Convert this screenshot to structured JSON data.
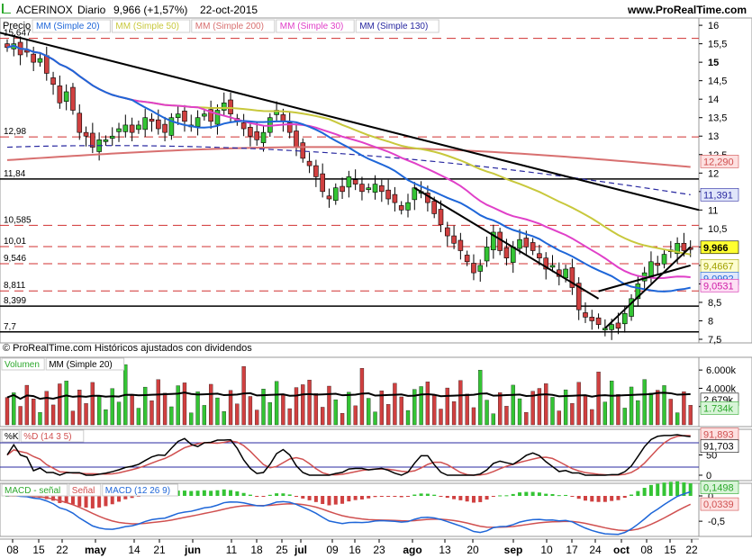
{
  "header": {
    "ticker": "ACERINOX",
    "period": "Diario",
    "quote": "9,966 (+1,57%)",
    "date": "22-oct-2015",
    "site": "www.ProRealTime.com"
  },
  "price_panel": {
    "label": "Precio",
    "legend": [
      {
        "text": "MM (Simple 20)",
        "color": "#1e66d8"
      },
      {
        "text": "MM (Simple 50)",
        "color": "#c8c83c"
      },
      {
        "text": "MM (Simple 200)",
        "color": "#d87070"
      },
      {
        "text": "MM (Simple 30)",
        "color": "#e040c8"
      },
      {
        "text": "MM (Simple 130)",
        "color": "#2828a0"
      }
    ],
    "footer": "© ProRealTime.com Históricos ajustados con dividendos",
    "level_labels": [
      "15,647",
      "12,98",
      "11,84",
      "10,585",
      "10,01",
      "9,546",
      "8,811",
      "8,399",
      "7,7"
    ],
    "y_ticks": [
      "16",
      "15,5",
      "15",
      "14,5",
      "14",
      "13,5",
      "13",
      "12,5",
      "12",
      "11,5",
      "11",
      "10,5",
      "10",
      "9,5",
      "9",
      "8,5",
      "8",
      "7,5"
    ],
    "value_badges": [
      {
        "text": "12,290",
        "bg": "#fde0e0",
        "fg": "#d05050"
      },
      {
        "text": "11,391",
        "bg": "#e0e6fa",
        "fg": "#2828a0"
      },
      {
        "text": "9,966",
        "bg": "#ffff30",
        "fg": "#000000"
      },
      {
        "text": "9,4667",
        "bg": "#fdfdd0",
        "fg": "#a0a000"
      },
      {
        "text": "9,0992",
        "bg": "#e0e8fa",
        "fg": "#1e66d8"
      },
      {
        "text": "9,0531",
        "bg": "#fde0f4",
        "fg": "#d020a8"
      }
    ]
  },
  "volume_panel": {
    "legend": [
      {
        "text": "Volumen",
        "color": "#2ca82c"
      },
      {
        "text": "MM (Simple 20)",
        "color": "#000000"
      }
    ],
    "y_ticks": [
      "6.000k",
      "4.000k",
      "2.000k"
    ],
    "value_badges": [
      {
        "text": "2.679k",
        "bg": "#ffffff",
        "fg": "#000000"
      },
      {
        "text": "1.734k",
        "bg": "#d8f4d8",
        "fg": "#2ca82c"
      }
    ]
  },
  "stoch_panel": {
    "legend": [
      {
        "text": "%K",
        "color": "#000000"
      },
      {
        "text": "%D (14 3 5)",
        "color": "#d05050"
      }
    ],
    "y_ticks": [
      "50",
      "0"
    ],
    "value_badges": [
      {
        "text": "91,893",
        "bg": "#fde0e0",
        "fg": "#d05050"
      },
      {
        "text": "91,703",
        "bg": "#ffffff",
        "fg": "#000000"
      }
    ]
  },
  "macd_panel": {
    "legend": [
      {
        "text": "MACD - señal",
        "color": "#2ca82c"
      },
      {
        "text": "Señal",
        "color": "#d05050"
      },
      {
        "text": "MACD (12 26 9)",
        "color": "#1e66d8"
      }
    ],
    "y_ticks": [
      "0",
      "-0,5"
    ],
    "value_badges": [
      {
        "text": "0,1498",
        "bg": "#d8f4d8",
        "fg": "#2ca82c"
      },
      {
        "text": "0,0339",
        "bg": "#fde0e0",
        "fg": "#d05050"
      }
    ]
  },
  "x_axis": {
    "labels": [
      "08",
      "15",
      "22",
      "may",
      "14",
      "21",
      "jun",
      "11",
      "18",
      "25",
      "jul",
      "09",
      "16",
      "23",
      "ago",
      "13",
      "20",
      "sep",
      "10",
      "17",
      "24",
      "oct",
      "08",
      "15",
      "22"
    ]
  },
  "chart_data": {
    "type": "candlestick",
    "title": "ACERINOX Diario",
    "y_range": [
      7.5,
      16.1
    ],
    "horizontal_levels": {
      "dashed_red": [
        15.647,
        12.98,
        10.585,
        10.01,
        9.546,
        8.811
      ],
      "solid_black": [
        11.84,
        8.399,
        7.7
      ]
    },
    "close_series": [
      15.4,
      15.5,
      15.2,
      15.3,
      15.0,
      15.1,
      14.7,
      14.4,
      13.9,
      14.2,
      13.7,
      13.1,
      13.0,
      12.7,
      12.9,
      12.9,
      13.0,
      13.2,
      13.3,
      13.1,
      13.3,
      13.5,
      13.4,
      13.2,
      13.1,
      13.5,
      13.6,
      13.4,
      13.3,
      13.5,
      13.6,
      13.4,
      13.7,
      13.9,
      13.6,
      13.4,
      13.2,
      13.0,
      12.9,
      13.1,
      13.5,
      13.7,
      13.4,
      13.1,
      12.7,
      12.4,
      12.2,
      11.9,
      11.5,
      11.3,
      11.6,
      11.5,
      11.9,
      11.7,
      11.5,
      11.6,
      11.7,
      11.5,
      11.3,
      11.2,
      11.0,
      11.2,
      11.6,
      11.5,
      11.2,
      10.9,
      10.6,
      10.3,
      10.1,
      9.9,
      9.6,
      9.3,
      9.5,
      10.0,
      10.4,
      9.9,
      9.7,
      10.0,
      10.2,
      10.0,
      9.9,
      9.7,
      9.4,
      9.5,
      9.2,
      9.4,
      8.9,
      8.3,
      8.1,
      8.0,
      7.9,
      7.8,
      7.9,
      7.8,
      8.2,
      8.6,
      9.0,
      9.3,
      9.6,
      9.5,
      9.8,
      9.9,
      10.1,
      9.9,
      9.966
    ],
    "indicators": {
      "MM20_last": 9.0992,
      "MM50_last": 9.4667,
      "MM200_last": 12.29,
      "MM30_last": 9.0531,
      "MM130_last": 11.391
    },
    "volume_last_k": 1734,
    "volume_ma_last_k": 2679,
    "stoch_k_last": 91.703,
    "stoch_d_last": 91.893,
    "macd_hist_last": 0.1498,
    "macd_signal_last": 0.0339
  }
}
